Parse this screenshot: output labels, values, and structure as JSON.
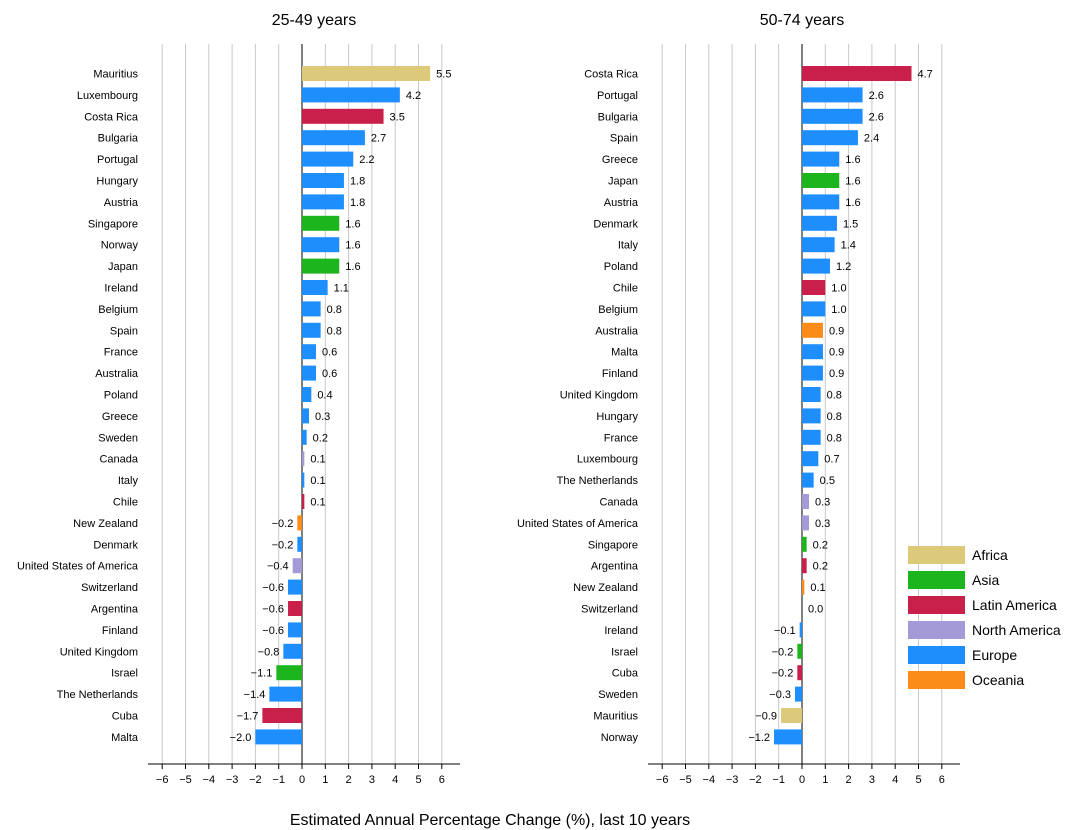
{
  "chart_data": {
    "type": "bar",
    "orientation": "horizontal",
    "xlabel": "Estimated Annual Percentage Change (%), last 10 years",
    "xlim": [
      -7,
      7
    ],
    "xticks": [
      -6,
      -5,
      -4,
      -3,
      -2,
      -1,
      0,
      1,
      2,
      3,
      4,
      5,
      6
    ],
    "grid": "vertical",
    "legend_position": "right",
    "legend": [
      {
        "name": "Africa",
        "color": "#ddc97a"
      },
      {
        "name": "Asia",
        "color": "#1db51d"
      },
      {
        "name": "Latin America",
        "color": "#c8204a"
      },
      {
        "name": "North America",
        "color": "#a59ad8"
      },
      {
        "name": "Europe",
        "color": "#1e8efc"
      },
      {
        "name": "Oceania",
        "color": "#fb8c19"
      }
    ],
    "panels": [
      {
        "title": "25-49 years",
        "bars": [
          {
            "country": "Mauritius",
            "value": 5.5,
            "label": "5.5",
            "region": "Africa"
          },
          {
            "country": "Luxembourg",
            "value": 4.2,
            "label": "4.2",
            "region": "Europe"
          },
          {
            "country": "Costa Rica",
            "value": 3.5,
            "label": "3.5",
            "region": "Latin America"
          },
          {
            "country": "Bulgaria",
            "value": 2.7,
            "label": "2.7",
            "region": "Europe"
          },
          {
            "country": "Portugal",
            "value": 2.2,
            "label": "2.2",
            "region": "Europe"
          },
          {
            "country": "Hungary",
            "value": 1.8,
            "label": "1.8",
            "region": "Europe"
          },
          {
            "country": "Austria",
            "value": 1.8,
            "label": "1.8",
            "region": "Europe"
          },
          {
            "country": "Singapore",
            "value": 1.6,
            "label": "1.6",
            "region": "Asia"
          },
          {
            "country": "Norway",
            "value": 1.6,
            "label": "1.6",
            "region": "Europe"
          },
          {
            "country": "Japan",
            "value": 1.6,
            "label": "1.6",
            "region": "Asia"
          },
          {
            "country": "Ireland",
            "value": 1.1,
            "label": "1.1",
            "region": "Europe"
          },
          {
            "country": "Belgium",
            "value": 0.8,
            "label": "0.8",
            "region": "Europe"
          },
          {
            "country": "Spain",
            "value": 0.8,
            "label": "0.8",
            "region": "Europe"
          },
          {
            "country": "France",
            "value": 0.6,
            "label": "0.6",
            "region": "Europe"
          },
          {
            "country": "Australia",
            "value": 0.6,
            "label": "0.6",
            "region": "Europe"
          },
          {
            "country": "Poland",
            "value": 0.4,
            "label": "0.4",
            "region": "Europe"
          },
          {
            "country": "Greece",
            "value": 0.3,
            "label": "0.3",
            "region": "Europe"
          },
          {
            "country": "Sweden",
            "value": 0.2,
            "label": "0.2",
            "region": "Europe"
          },
          {
            "country": "Canada",
            "value": 0.1,
            "label": "0.1",
            "region": "North America"
          },
          {
            "country": "Italy",
            "value": 0.1,
            "label": "0.1",
            "region": "Europe"
          },
          {
            "country": "Chile",
            "value": 0.1,
            "label": "0.1",
            "region": "Latin America"
          },
          {
            "country": "New Zealand",
            "value": -0.2,
            "label": "−0.2",
            "region": "Oceania"
          },
          {
            "country": "Denmark",
            "value": -0.2,
            "label": "−0.2",
            "region": "Europe"
          },
          {
            "country": "United States of America",
            "value": -0.4,
            "label": "−0.4",
            "region": "North America"
          },
          {
            "country": "Switzerland",
            "value": -0.6,
            "label": "−0.6",
            "region": "Europe"
          },
          {
            "country": "Argentina",
            "value": -0.6,
            "label": "−0.6",
            "region": "Latin America"
          },
          {
            "country": "Finland",
            "value": -0.6,
            "label": "−0.6",
            "region": "Europe"
          },
          {
            "country": "United Kingdom",
            "value": -0.8,
            "label": "−0.8",
            "region": "Europe"
          },
          {
            "country": "Israel",
            "value": -1.1,
            "label": "−1.1",
            "region": "Asia"
          },
          {
            "country": "The Netherlands",
            "value": -1.4,
            "label": "−1.4",
            "region": "Europe"
          },
          {
            "country": "Cuba",
            "value": -1.7,
            "label": "−1.7",
            "region": "Latin America"
          },
          {
            "country": "Malta",
            "value": -2.0,
            "label": "−2.0",
            "region": "Europe"
          }
        ]
      },
      {
        "title": "50-74 years",
        "bars": [
          {
            "country": "Costa Rica",
            "value": 4.7,
            "label": "4.7",
            "region": "Latin America"
          },
          {
            "country": "Portugal",
            "value": 2.6,
            "label": "2.6",
            "region": "Europe"
          },
          {
            "country": "Bulgaria",
            "value": 2.6,
            "label": "2.6",
            "region": "Europe"
          },
          {
            "country": "Spain",
            "value": 2.4,
            "label": "2.4",
            "region": "Europe"
          },
          {
            "country": "Greece",
            "value": 1.6,
            "label": "1.6",
            "region": "Europe"
          },
          {
            "country": "Japan",
            "value": 1.6,
            "label": "1.6",
            "region": "Asia"
          },
          {
            "country": "Austria",
            "value": 1.6,
            "label": "1.6",
            "region": "Europe"
          },
          {
            "country": "Denmark",
            "value": 1.5,
            "label": "1.5",
            "region": "Europe"
          },
          {
            "country": "Italy",
            "value": 1.4,
            "label": "1.4",
            "region": "Europe"
          },
          {
            "country": "Poland",
            "value": 1.2,
            "label": "1.2",
            "region": "Europe"
          },
          {
            "country": "Chile",
            "value": 1.0,
            "label": "1.0",
            "region": "Latin America"
          },
          {
            "country": "Belgium",
            "value": 1.0,
            "label": "1.0",
            "region": "Europe"
          },
          {
            "country": "Australia",
            "value": 0.9,
            "label": "0.9",
            "region": "Oceania"
          },
          {
            "country": "Malta",
            "value": 0.9,
            "label": "0.9",
            "region": "Europe"
          },
          {
            "country": "Finland",
            "value": 0.9,
            "label": "0.9",
            "region": "Europe"
          },
          {
            "country": "United Kingdom",
            "value": 0.8,
            "label": "0.8",
            "region": "Europe"
          },
          {
            "country": "Hungary",
            "value": 0.8,
            "label": "0.8",
            "region": "Europe"
          },
          {
            "country": "France",
            "value": 0.8,
            "label": "0.8",
            "region": "Europe"
          },
          {
            "country": "Luxembourg",
            "value": 0.7,
            "label": "0.7",
            "region": "Europe"
          },
          {
            "country": "The Netherlands",
            "value": 0.5,
            "label": "0.5",
            "region": "Europe"
          },
          {
            "country": "Canada",
            "value": 0.3,
            "label": "0.3",
            "region": "North America"
          },
          {
            "country": "United States of America",
            "value": 0.3,
            "label": "0.3",
            "region": "North America"
          },
          {
            "country": "Singapore",
            "value": 0.2,
            "label": "0.2",
            "region": "Asia"
          },
          {
            "country": "Argentina",
            "value": 0.2,
            "label": "0.2",
            "region": "Latin America"
          },
          {
            "country": "New Zealand",
            "value": 0.1,
            "label": "0.1",
            "region": "Oceania"
          },
          {
            "country": "Switzerland",
            "value": 0.0,
            "label": "0.0",
            "region": "Europe"
          },
          {
            "country": "Ireland",
            "value": -0.1,
            "label": "−0.1",
            "region": "Europe"
          },
          {
            "country": "Israel",
            "value": -0.2,
            "label": "−0.2",
            "region": "Asia"
          },
          {
            "country": "Cuba",
            "value": -0.2,
            "label": "−0.2",
            "region": "Latin America"
          },
          {
            "country": "Sweden",
            "value": -0.3,
            "label": "−0.3",
            "region": "Europe"
          },
          {
            "country": "Mauritius",
            "value": -0.9,
            "label": "−0.9",
            "region": "Africa"
          },
          {
            "country": "Norway",
            "value": -1.2,
            "label": "−1.2",
            "region": "Europe"
          }
        ]
      }
    ]
  }
}
